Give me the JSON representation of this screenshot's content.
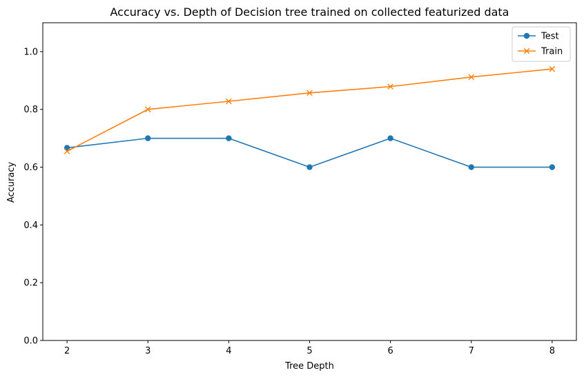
{
  "chart_data": {
    "type": "line",
    "title": "Accuracy vs. Depth of Decision tree trained on collected featurized data",
    "xlabel": "Tree Depth",
    "ylabel": "Accuracy",
    "x": [
      2,
      3,
      4,
      5,
      6,
      7,
      8
    ],
    "xlim": [
      1.7,
      8.3
    ],
    "ylim": [
      0.0,
      1.1
    ],
    "x_ticks": [
      2,
      3,
      4,
      5,
      6,
      7,
      8
    ],
    "y_ticks": [
      0.0,
      0.2,
      0.4,
      0.6,
      0.8,
      1.0
    ],
    "x_tick_labels": [
      "2",
      "3",
      "4",
      "5",
      "6",
      "7",
      "8"
    ],
    "y_tick_labels": [
      "0.0",
      "0.2",
      "0.4",
      "0.6",
      "0.8",
      "1.0"
    ],
    "grid": false,
    "legend_position": "top-right",
    "series": [
      {
        "name": "Test",
        "values": [
          0.667,
          0.7,
          0.7,
          0.6,
          0.7,
          0.6,
          0.6
        ],
        "color": "#1f77b4",
        "marker": "circle"
      },
      {
        "name": "Train",
        "values": [
          0.655,
          0.8,
          0.828,
          0.857,
          0.879,
          0.912,
          0.94
        ],
        "color": "#ff7f0e",
        "marker": "x"
      }
    ]
  }
}
